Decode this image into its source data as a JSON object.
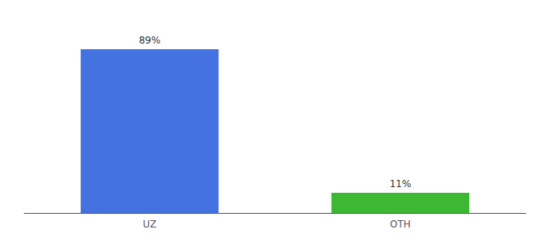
{
  "chart_data": {
    "type": "bar",
    "categories": [
      "UZ",
      "OTH"
    ],
    "values": [
      89,
      11
    ],
    "value_labels": [
      "89%",
      "11%"
    ],
    "data_labels": true,
    "colors": [
      "#4472e0",
      "#3cb832"
    ],
    "ylim": [
      0,
      100
    ],
    "grid": false,
    "tick_labels": "x"
  }
}
